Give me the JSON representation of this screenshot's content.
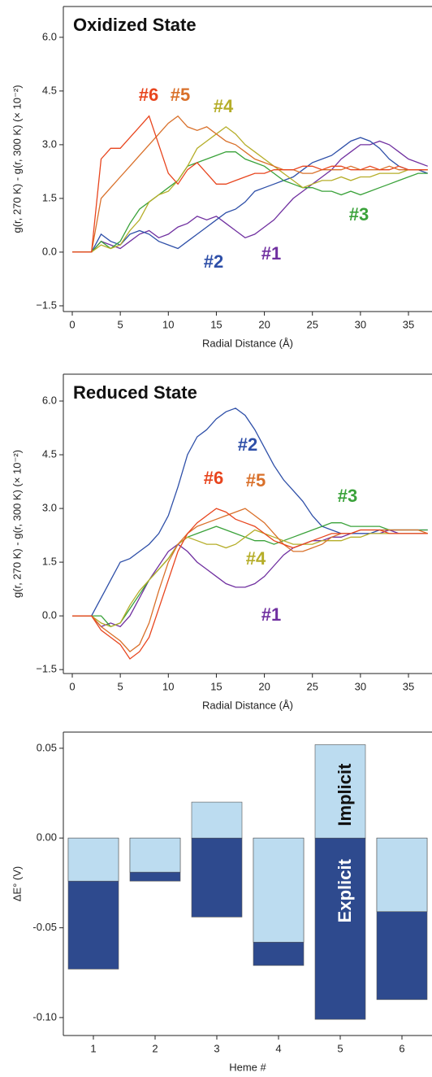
{
  "chart_data": [
    {
      "type": "line",
      "title": "Oxidized State",
      "xlabel": "Radial Distance (Å)",
      "ylabel": "g(r, 270 K) - g(r, 300 K) (× 10⁻²)",
      "x": [
        0,
        1,
        2,
        3,
        4,
        5,
        6,
        7,
        8,
        9,
        10,
        11,
        12,
        13,
        14,
        15,
        16,
        17,
        18,
        19,
        20,
        21,
        22,
        23,
        24,
        25,
        26,
        27,
        28,
        29,
        30,
        31,
        32,
        33,
        34,
        35,
        36,
        37
      ],
      "xlim": [
        -0.93,
        37.45
      ],
      "xticks": [
        0,
        5,
        10,
        15,
        20,
        25,
        30,
        35
      ],
      "ylim": [
        -1.66,
        6.86
      ],
      "yticks": [
        {
          "value": -1.5,
          "label": "−1.5"
        },
        {
          "value": 0,
          "label": "0.0"
        },
        1.5,
        {
          "value": 3,
          "label": "3.0"
        },
        4.5,
        {
          "value": 6,
          "label": "6.0"
        }
      ],
      "series": [
        {
          "name": "#1",
          "color": "#7030a0",
          "values": [
            0,
            0,
            0,
            0.3,
            0.2,
            0.1,
            0.3,
            0.5,
            0.6,
            0.4,
            0.5,
            0.7,
            0.8,
            1.0,
            0.9,
            1.0,
            0.8,
            0.6,
            0.4,
            0.5,
            0.7,
            0.9,
            1.2,
            1.5,
            1.7,
            1.9,
            2.1,
            2.3,
            2.6,
            2.8,
            3.0,
            3.0,
            3.1,
            3.0,
            2.8,
            2.6,
            2.5,
            2.4
          ]
        },
        {
          "name": "#2",
          "color": "#2e4fa8",
          "values": [
            0,
            0,
            0,
            0.5,
            0.3,
            0.2,
            0.5,
            0.6,
            0.5,
            0.3,
            0.2,
            0.1,
            0.3,
            0.5,
            0.7,
            0.9,
            1.1,
            1.2,
            1.4,
            1.7,
            1.8,
            1.9,
            2.0,
            2.1,
            2.3,
            2.5,
            2.6,
            2.7,
            2.9,
            3.1,
            3.2,
            3.1,
            2.9,
            2.6,
            2.4,
            2.3,
            2.3,
            2.2
          ]
        },
        {
          "name": "#3",
          "color": "#3aa23a",
          "values": [
            0,
            0,
            0,
            0.3,
            0.1,
            0.3,
            0.8,
            1.2,
            1.4,
            1.6,
            1.8,
            2.0,
            2.4,
            2.5,
            2.6,
            2.7,
            2.8,
            2.8,
            2.6,
            2.5,
            2.4,
            2.2,
            2.0,
            1.9,
            1.8,
            1.8,
            1.7,
            1.7,
            1.6,
            1.7,
            1.6,
            1.7,
            1.8,
            1.9,
            2.0,
            2.1,
            2.2,
            2.2
          ]
        },
        {
          "name": "#4",
          "color": "#b5ad28",
          "values": [
            0,
            0,
            0,
            0.2,
            0.1,
            0.2,
            0.6,
            0.9,
            1.4,
            1.6,
            1.7,
            2.0,
            2.4,
            2.9,
            3.1,
            3.3,
            3.5,
            3.3,
            3.0,
            2.8,
            2.6,
            2.4,
            2.2,
            2.0,
            1.8,
            1.9,
            2.0,
            2.0,
            2.1,
            2.0,
            2.1,
            2.1,
            2.2,
            2.2,
            2.2,
            2.3,
            2.3,
            2.3
          ]
        },
        {
          "name": "#5",
          "color": "#d9702a",
          "values": [
            0,
            0,
            0,
            1.5,
            1.8,
            2.1,
            2.4,
            2.7,
            3.0,
            3.3,
            3.6,
            3.8,
            3.5,
            3.4,
            3.5,
            3.3,
            3.1,
            3.0,
            2.8,
            2.6,
            2.5,
            2.4,
            2.3,
            2.3,
            2.2,
            2.2,
            2.3,
            2.3,
            2.3,
            2.4,
            2.3,
            2.3,
            2.3,
            2.4,
            2.3,
            2.3,
            2.3,
            2.3
          ]
        },
        {
          "name": "#6",
          "color": "#e8451e",
          "values": [
            0,
            0,
            0,
            2.6,
            2.9,
            2.9,
            3.2,
            3.5,
            3.8,
            3.0,
            2.2,
            1.9,
            2.3,
            2.5,
            2.2,
            1.9,
            1.9,
            2.0,
            2.1,
            2.2,
            2.2,
            2.3,
            2.3,
            2.3,
            2.4,
            2.4,
            2.3,
            2.4,
            2.4,
            2.3,
            2.3,
            2.4,
            2.3,
            2.3,
            2.4,
            2.3,
            2.3,
            2.3
          ]
        }
      ]
    },
    {
      "type": "line",
      "title": "Reduced State",
      "xlabel": "Radial Distance (Å)",
      "ylabel": "g(r, 270 K) - g(r, 300 K) (× 10⁻²)",
      "x": [
        0,
        1,
        2,
        3,
        4,
        5,
        6,
        7,
        8,
        9,
        10,
        11,
        12,
        13,
        14,
        15,
        16,
        17,
        18,
        19,
        20,
        21,
        22,
        23,
        24,
        25,
        26,
        27,
        28,
        29,
        30,
        31,
        32,
        33,
        34,
        35,
        36,
        37
      ],
      "xlim": [
        -0.93,
        37.45
      ],
      "xticks": [
        0,
        5,
        10,
        15,
        20,
        25,
        30,
        35
      ],
      "ylim": [
        -1.61,
        6.75
      ],
      "yticks": [
        {
          "value": -1.5,
          "label": "−1.5"
        },
        {
          "value": 0,
          "label": "0.0"
        },
        1.5,
        {
          "value": 3,
          "label": "3.0"
        },
        4.5,
        {
          "value": 6,
          "label": "6.0"
        }
      ],
      "series": [
        {
          "name": "#1",
          "color": "#7030a0",
          "values": [
            0,
            0,
            0,
            -0.3,
            -0.2,
            -0.3,
            0,
            0.5,
            1.0,
            1.4,
            1.8,
            2.0,
            1.8,
            1.5,
            1.3,
            1.1,
            0.9,
            0.8,
            0.8,
            0.9,
            1.1,
            1.4,
            1.7,
            1.9,
            2.0,
            2.1,
            2.1,
            2.2,
            2.2,
            2.3,
            2.3,
            2.3,
            2.3,
            2.4,
            2.3,
            2.3,
            2.3,
            2.3
          ]
        },
        {
          "name": "#2",
          "color": "#2e4fa8",
          "values": [
            0,
            0,
            0,
            0.5,
            1.0,
            1.5,
            1.6,
            1.8,
            2.0,
            2.3,
            2.8,
            3.6,
            4.5,
            5.0,
            5.2,
            5.5,
            5.7,
            5.8,
            5.6,
            5.2,
            4.7,
            4.2,
            3.8,
            3.5,
            3.2,
            2.8,
            2.5,
            2.4,
            2.3,
            2.3,
            2.3,
            2.3,
            2.4,
            2.4,
            2.4,
            2.4,
            2.4,
            2.4
          ]
        },
        {
          "name": "#3",
          "color": "#3aa23a",
          "values": [
            0,
            0,
            0,
            0,
            -0.3,
            -0.2,
            0.2,
            0.6,
            1.0,
            1.3,
            1.6,
            2.0,
            2.2,
            2.3,
            2.4,
            2.5,
            2.4,
            2.3,
            2.2,
            2.1,
            2.1,
            2.0,
            2.1,
            2.2,
            2.3,
            2.4,
            2.5,
            2.6,
            2.6,
            2.5,
            2.5,
            2.5,
            2.5,
            2.4,
            2.4,
            2.4,
            2.4,
            2.4
          ]
        },
        {
          "name": "#4",
          "color": "#b5ad28",
          "values": [
            0,
            0,
            0,
            -0.2,
            -0.3,
            -0.2,
            0.3,
            0.7,
            1.0,
            1.3,
            1.6,
            2.0,
            2.2,
            2.1,
            2.0,
            2.0,
            1.9,
            2.0,
            2.2,
            2.4,
            2.3,
            2.2,
            2.1,
            2.0,
            2.0,
            2.0,
            2.1,
            2.1,
            2.1,
            2.2,
            2.2,
            2.3,
            2.3,
            2.3,
            2.3,
            2.3,
            2.3,
            2.3
          ]
        },
        {
          "name": "#5",
          "color": "#d9702a",
          "values": [
            0,
            0,
            0,
            -0.3,
            -0.5,
            -0.7,
            -1.0,
            -0.8,
            -0.2,
            0.7,
            1.5,
            2.0,
            2.3,
            2.5,
            2.6,
            2.7,
            2.8,
            2.9,
            3.0,
            2.8,
            2.6,
            2.3,
            2.0,
            1.8,
            1.8,
            1.9,
            2.0,
            2.2,
            2.3,
            2.3,
            2.4,
            2.4,
            2.4,
            2.4,
            2.4,
            2.4,
            2.4,
            2.3
          ]
        },
        {
          "name": "#6",
          "color": "#e8451e",
          "values": [
            0,
            0,
            0,
            -0.4,
            -0.6,
            -0.8,
            -1.2,
            -1.0,
            -0.6,
            0.2,
            1.0,
            1.8,
            2.3,
            2.6,
            2.8,
            3.0,
            2.9,
            2.7,
            2.6,
            2.5,
            2.3,
            2.1,
            2.0,
            1.9,
            2.0,
            2.1,
            2.2,
            2.3,
            2.3,
            2.3,
            2.4,
            2.4,
            2.4,
            2.3,
            2.3,
            2.3,
            2.3,
            2.3
          ]
        }
      ]
    },
    {
      "type": "bar",
      "xlabel": "Heme #",
      "ylabel": "ΔE° (V)",
      "categories": [
        "1",
        "2",
        "3",
        "4",
        "5",
        "6"
      ],
      "ylim": [
        -0.11,
        0.059
      ],
      "yticks": [
        {
          "value": -0.1,
          "label": "-0.10"
        },
        {
          "value": -0.05,
          "label": "-0.05"
        },
        {
          "value": 0,
          "label": "0.00"
        },
        0.05
      ],
      "series": [
        {
          "name": "Explicit",
          "color": "#2e4a8e",
          "values": [
            -0.073,
            -0.024,
            -0.044,
            -0.071,
            -0.101,
            -0.09
          ]
        },
        {
          "name": "Implicit",
          "color": "#bcdcf0",
          "values": [
            -0.024,
            -0.019,
            0.02,
            -0.058,
            0.052,
            -0.041
          ]
        }
      ]
    }
  ]
}
